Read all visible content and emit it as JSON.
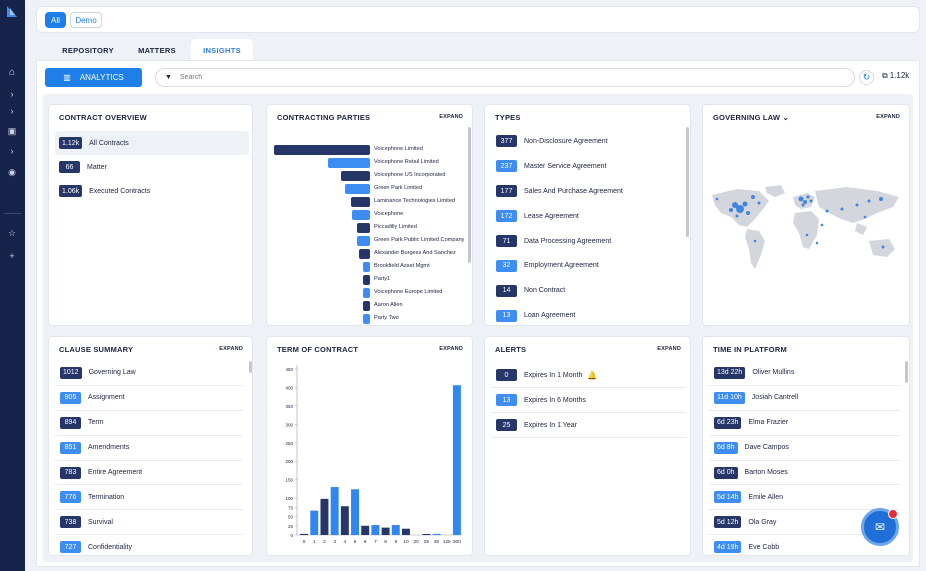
{
  "filters": {
    "all": "All",
    "demo": "Demo"
  },
  "tabs": [
    {
      "label": "REPOSITORY"
    },
    {
      "label": "MATTERS"
    },
    {
      "label": "INSIGHTS"
    }
  ],
  "toolbar": {
    "analytics_label": "ANALYTICS",
    "search_placeholder": "Search",
    "total_count": "1.12k"
  },
  "contract_overview": {
    "title": "CONTRACT OVERVIEW",
    "items": [
      {
        "count": "1.12k",
        "label": "All Contracts"
      },
      {
        "count": "66",
        "label": "Matter"
      },
      {
        "count": "1.06k",
        "label": "Executed Contracts"
      }
    ]
  },
  "contracting_parties": {
    "title": "CONTRACTING PARTIES",
    "expand": "EXPAND",
    "items": [
      {
        "name": "Voicephone Limited",
        "value": 100
      },
      {
        "name": "Voicephone Retail Limited",
        "value": 44
      },
      {
        "name": "Voicephone US Incorporated",
        "value": 30
      },
      {
        "name": "Green Park Limited",
        "value": 26
      },
      {
        "name": "Laminance Technologies Limited",
        "value": 20
      },
      {
        "name": "Voicephone",
        "value": 19
      },
      {
        "name": "Piccadilly Limited",
        "value": 14
      },
      {
        "name": "Green Park Public Limited Company",
        "value": 14
      },
      {
        "name": "Alexander Burgess And Sanchez",
        "value": 11
      },
      {
        "name": "Brookfield Asset Mgmt",
        "value": 7
      },
      {
        "name": "Party1",
        "value": 7
      },
      {
        "name": "Voicephone Europe Limited",
        "value": 7
      },
      {
        "name": "Aaron Allen",
        "value": 7
      },
      {
        "name": "Party Two",
        "value": 7
      }
    ]
  },
  "types": {
    "title": "TYPES",
    "items": [
      {
        "count": "377",
        "label": "Non-Disclosure Agreement"
      },
      {
        "count": "237",
        "label": "Master Service Agreement"
      },
      {
        "count": "177",
        "label": "Sales And Purchase Agreement"
      },
      {
        "count": "172",
        "label": "Lease Agreement"
      },
      {
        "count": "71",
        "label": "Data Processing Agreement"
      },
      {
        "count": "32",
        "label": "Employment Agreement"
      },
      {
        "count": "14",
        "label": "Non Contract"
      },
      {
        "count": "13",
        "label": "Loan Agreement"
      }
    ]
  },
  "governing_law": {
    "title": "GOVERNING LAW",
    "expand": "EXPAND"
  },
  "clause_summary": {
    "title": "CLAUSE SUMMARY",
    "expand": "EXPAND",
    "items": [
      {
        "count": "1012",
        "label": "Governing Law"
      },
      {
        "count": "905",
        "label": "Assignment"
      },
      {
        "count": "894",
        "label": "Term"
      },
      {
        "count": "851",
        "label": "Amendments"
      },
      {
        "count": "783",
        "label": "Entire Agreement"
      },
      {
        "count": "776",
        "label": "Termination"
      },
      {
        "count": "738",
        "label": "Survival"
      },
      {
        "count": "727",
        "label": "Confidentiality"
      }
    ]
  },
  "term_of_contract": {
    "title": "TERM OF CONTRACT",
    "expand": "EXPAND"
  },
  "alerts": {
    "title": "ALERTS",
    "expand": "EXPAND",
    "items": [
      {
        "count": "0",
        "label": "Expires In 1 Month"
      },
      {
        "count": "13",
        "label": "Expires In 6 Months"
      },
      {
        "count": "25",
        "label": "Expires In 1 Year"
      }
    ]
  },
  "time_in_platform": {
    "title": "TIME IN PLATFORM",
    "items": [
      {
        "time": "13d 22h",
        "name": "Oliver Mullins"
      },
      {
        "time": "11d 10h",
        "name": "Josiah Cantrell"
      },
      {
        "time": "6d 23h",
        "name": "Elma Frazier"
      },
      {
        "time": "6d 8h",
        "name": "Dave Campos"
      },
      {
        "time": "6d 0h",
        "name": "Barton Moses"
      },
      {
        "time": "5d 14h",
        "name": "Emile Allen"
      },
      {
        "time": "5d 12h",
        "name": "Ola Gray"
      },
      {
        "time": "4d 19h",
        "name": "Eve Cobb"
      }
    ]
  },
  "chart_data": {
    "type": "bar",
    "title": "TERM OF CONTRACT",
    "categories": [
      "0",
      "1",
      "2",
      "3",
      "4",
      "5",
      "6",
      "7",
      "8",
      "9",
      "10",
      "20",
      "25",
      "30",
      "125",
      "300"
    ],
    "values": [
      3,
      66,
      98,
      130,
      78,
      124,
      25,
      27,
      20,
      27,
      17,
      0,
      2,
      3,
      0,
      406
    ],
    "ylim": [
      0,
      450
    ],
    "yticks": [
      0,
      25,
      50,
      75,
      100,
      150,
      200,
      250,
      300,
      350,
      400,
      450
    ],
    "grid": false,
    "colors": {
      "dark": "#263669",
      "light": "#2f87ef"
    }
  }
}
